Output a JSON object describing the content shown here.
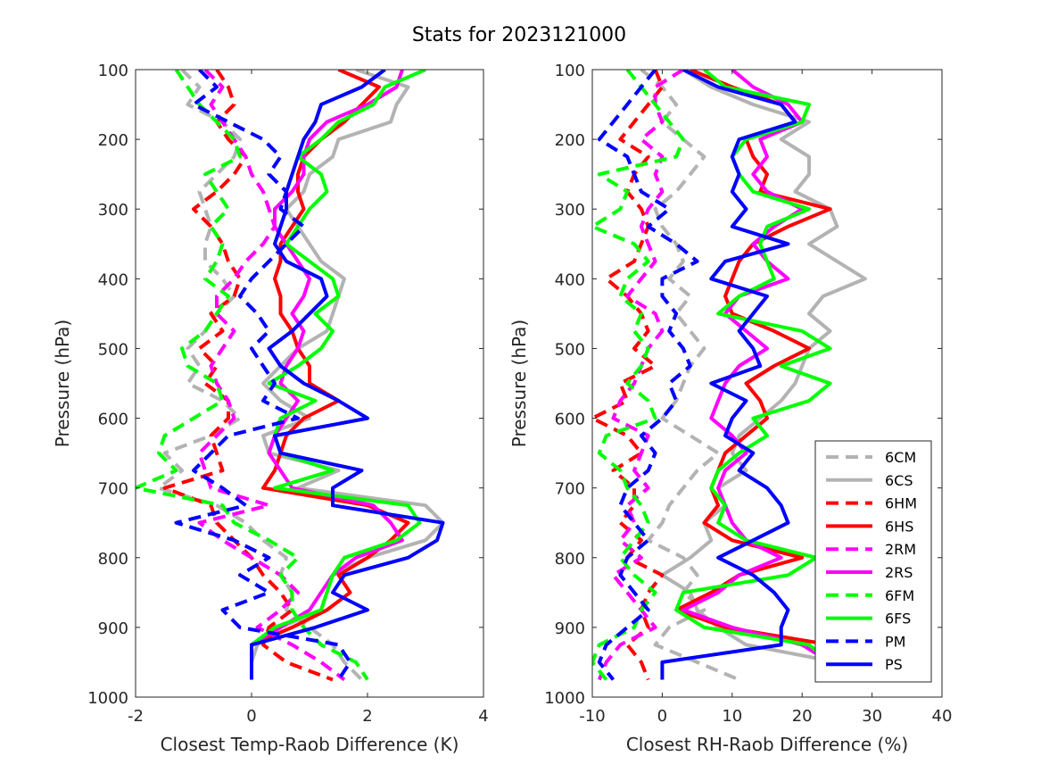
{
  "figure_title": "Stats for 2023121000",
  "colors": {
    "6C": "#b3b3b3",
    "6H": "#ff0000",
    "2R": "#ff00ff",
    "6F": "#00ff00",
    "P": "#0000ff"
  },
  "legend": {
    "placement": "inside-lower-right of right panel",
    "entries": [
      {
        "label": "6CM",
        "color": "#b3b3b3",
        "dash": true
      },
      {
        "label": "6CS",
        "color": "#b3b3b3",
        "dash": false
      },
      {
        "label": "6HM",
        "color": "#ff0000",
        "dash": true
      },
      {
        "label": "6HS",
        "color": "#ff0000",
        "dash": false
      },
      {
        "label": "2RM",
        "color": "#ff00ff",
        "dash": true
      },
      {
        "label": "2RS",
        "color": "#ff00ff",
        "dash": false
      },
      {
        "label": "6FM",
        "color": "#00ff00",
        "dash": true
      },
      {
        "label": "6FS",
        "color": "#00ff00",
        "dash": false
      },
      {
        "label": "PM",
        "color": "#0000ff",
        "dash": true
      },
      {
        "label": "PS",
        "color": "#0000ff",
        "dash": false
      }
    ]
  },
  "chart_data": [
    {
      "type": "line",
      "xlabel": "Closest Temp-Raob Difference (K)",
      "ylabel": "Pressure (hPa)",
      "xlim": [
        -2,
        4
      ],
      "ylim": [
        100,
        1000
      ],
      "y_reversed": true,
      "xticks": [
        "-2",
        "0",
        "2",
        "4"
      ],
      "yticks": [
        "100",
        "200",
        "300",
        "400",
        "500",
        "600",
        "700",
        "800",
        "900",
        "1000"
      ],
      "grid": false,
      "y": [
        100,
        125,
        150,
        175,
        200,
        225,
        250,
        275,
        300,
        325,
        350,
        375,
        400,
        425,
        450,
        475,
        500,
        525,
        550,
        575,
        600,
        625,
        650,
        675,
        700,
        725,
        750,
        775,
        800,
        825,
        850,
        875,
        900,
        925,
        950,
        975
      ],
      "series": [
        {
          "name": "6CM",
          "color": "#b3b3b3",
          "dash": true,
          "x": [
            -1.2,
            -0.9,
            -1.1,
            -0.5,
            -0.2,
            -0.3,
            -0.6,
            -0.9,
            -0.8,
            -0.7,
            -0.8,
            -0.8,
            -0.5,
            -0.3,
            -0.6,
            -0.8,
            -1.1,
            -0.9,
            -1.1,
            -0.5,
            -0.2,
            -0.7,
            -1.5,
            -1.2,
            -1.6,
            -0.6,
            -0.1,
            0.2,
            0.6,
            0.5,
            0.7,
            0.6,
            1.0,
            1.4,
            1.6,
            1.9
          ]
        },
        {
          "name": "6CS",
          "color": "#b3b3b3",
          "dash": false,
          "x": [
            1.8,
            2.7,
            2.5,
            2.4,
            1.5,
            1.4,
            1.0,
            0.9,
            0.6,
            0.8,
            1.0,
            1.2,
            1.6,
            1.5,
            1.4,
            1.3,
            0.8,
            0.5,
            0.2,
            0.5,
            1.0,
            0.2,
            0.3,
            1.5,
            0.8,
            3.0,
            3.3,
            3.0,
            2.0,
            1.4,
            1.3,
            1.2,
            0.5,
            0.1,
            0.0,
            0.0
          ]
        },
        {
          "name": "6HM",
          "color": "#ff0000",
          "dash": true,
          "x": [
            -0.6,
            -0.4,
            -0.3,
            -0.6,
            -0.4,
            -0.1,
            -0.3,
            -0.6,
            -1.0,
            -0.7,
            -0.5,
            -0.4,
            -0.2,
            -0.3,
            -0.7,
            -0.5,
            -0.9,
            -0.6,
            -0.8,
            -0.4,
            -0.4,
            -0.7,
            -0.6,
            -0.5,
            -1.5,
            -0.7,
            -0.6,
            -0.3,
            0.0,
            0.2,
            0.5,
            0.7,
            0.3,
            0.2,
            0.6,
            1.4
          ]
        },
        {
          "name": "6HS",
          "color": "#ff0000",
          "dash": false,
          "x": [
            1.5,
            2.2,
            1.9,
            1.6,
            1.2,
            0.9,
            0.8,
            0.8,
            0.9,
            0.7,
            0.5,
            0.5,
            0.4,
            0.5,
            0.5,
            0.7,
            0.8,
            1.0,
            1.0,
            1.5,
            0.9,
            0.6,
            0.5,
            0.4,
            0.2,
            2.0,
            2.7,
            2.4,
            2.0,
            1.5,
            1.7,
            1.3,
            0.7,
            0.0,
            0.0,
            0.0
          ]
        },
        {
          "name": "2RM",
          "color": "#ff00ff",
          "dash": true,
          "x": [
            -0.8,
            -0.5,
            -0.7,
            -0.5,
            -0.3,
            -0.1,
            0.0,
            0.2,
            0.3,
            0.4,
            0.2,
            -0.1,
            -0.3,
            -0.6,
            -0.6,
            -0.3,
            -0.5,
            -0.7,
            -0.6,
            -0.4,
            -0.3,
            -0.6,
            -0.9,
            -0.8,
            -0.7,
            0.3,
            -0.9,
            -0.5,
            0.0,
            0.5,
            0.8,
            0.5,
            0.1,
            0.7,
            1.2,
            1.6
          ]
        },
        {
          "name": "2RS",
          "color": "#ff00ff",
          "dash": false,
          "x": [
            2.6,
            2.5,
            2.0,
            1.3,
            1.0,
            0.9,
            0.9,
            0.7,
            0.4,
            0.4,
            0.6,
            0.8,
            1.0,
            0.9,
            0.7,
            0.9,
            0.8,
            0.6,
            0.5,
            0.8,
            0.6,
            0.4,
            0.3,
            0.5,
            0.7,
            2.1,
            2.4,
            2.6,
            1.8,
            1.4,
            1.2,
            1.0,
            0.5,
            0.0,
            0.0,
            0.0
          ]
        },
        {
          "name": "6FM",
          "color": "#00ff00",
          "dash": true,
          "x": [
            -1.3,
            -1.1,
            -0.9,
            -0.6,
            -0.3,
            -0.2,
            -0.8,
            -0.6,
            -0.4,
            -0.7,
            -0.5,
            -0.6,
            -0.8,
            -0.4,
            -0.6,
            -0.8,
            -1.2,
            -1.1,
            -0.6,
            -0.5,
            -1.0,
            -1.5,
            -1.6,
            -1.3,
            -2.0,
            -0.5,
            -0.3,
            0.3,
            0.8,
            0.5,
            0.7,
            0.7,
            0.9,
            1.2,
            1.8,
            2.0
          ]
        },
        {
          "name": "6FS",
          "color": "#00ff00",
          "dash": false,
          "x": [
            3.0,
            2.3,
            2.1,
            1.5,
            1.2,
            0.8,
            1.2,
            1.3,
            1.0,
            0.8,
            0.6,
            1.0,
            1.4,
            1.5,
            1.1,
            1.4,
            1.2,
            0.8,
            0.3,
            1.1,
            0.5,
            0.4,
            0.5,
            1.4,
            0.4,
            2.7,
            2.9,
            2.5,
            1.6,
            1.4,
            1.3,
            1.2,
            0.4,
            0.0,
            0.0,
            0.0
          ]
        },
        {
          "name": "PM",
          "color": "#0000ff",
          "dash": true,
          "x": [
            -0.9,
            -0.6,
            -1.0,
            -0.4,
            0.2,
            0.5,
            0.3,
            0.6,
            0.5,
            0.9,
            0.6,
            0.3,
            0.0,
            -0.2,
            0.1,
            0.3,
            0.0,
            0.2,
            0.4,
            0.2,
            0.8,
            -0.4,
            -0.7,
            -1.0,
            -0.5,
            -0.1,
            -1.3,
            -0.3,
            0.3,
            -0.2,
            0.3,
            -0.5,
            -0.2,
            1.5,
            1.7,
            1.5
          ]
        },
        {
          "name": "PS",
          "color": "#0000ff",
          "dash": false,
          "x": [
            2.3,
            1.9,
            1.2,
            1.1,
            0.9,
            0.8,
            0.7,
            0.6,
            0.6,
            0.5,
            0.4,
            0.6,
            1.2,
            1.3,
            1.0,
            0.7,
            0.3,
            0.5,
            0.9,
            1.5,
            2.0,
            0.4,
            0.5,
            1.9,
            1.4,
            1.4,
            3.3,
            3.2,
            2.7,
            1.6,
            1.4,
            2.0,
            1.1,
            0.0,
            0.0,
            0.0
          ]
        }
      ]
    },
    {
      "type": "line",
      "xlabel": "Closest RH-Raob Difference (%)",
      "ylabel": "Pressure (hPa)",
      "xlim": [
        -10,
        40
      ],
      "ylim": [
        100,
        1000
      ],
      "y_reversed": true,
      "xticks": [
        "-10",
        "0",
        "10",
        "20",
        "30",
        "40"
      ],
      "yticks": [
        "100",
        "200",
        "300",
        "400",
        "500",
        "600",
        "700",
        "800",
        "900",
        "1000"
      ],
      "grid": false,
      "y": [
        100,
        125,
        150,
        175,
        200,
        225,
        250,
        275,
        300,
        325,
        350,
        375,
        400,
        425,
        450,
        475,
        500,
        525,
        550,
        575,
        600,
        625,
        650,
        675,
        700,
        725,
        750,
        775,
        800,
        825,
        850,
        875,
        900,
        925,
        950,
        975
      ],
      "series": [
        {
          "name": "6CM",
          "color": "#b3b3b3",
          "dash": true,
          "x": [
            -3,
            0,
            2,
            0,
            3,
            6,
            4,
            2,
            -1,
            0,
            2,
            3,
            1,
            4,
            2,
            4,
            6,
            4,
            3,
            2,
            0,
            4,
            8,
            5,
            3,
            1,
            0,
            -2,
            3,
            5,
            3,
            6,
            1,
            -1,
            5,
            11
          ]
        },
        {
          "name": "6CS",
          "color": "#b3b3b3",
          "dash": false,
          "x": [
            3,
            7,
            13,
            21,
            17,
            21,
            21,
            19,
            24,
            25,
            21,
            25,
            29,
            23,
            21,
            24,
            21,
            20,
            19,
            17,
            14,
            11,
            10,
            12,
            8,
            9,
            6,
            7,
            4,
            0,
            4,
            5,
            8,
            12,
            25,
            30
          ]
        },
        {
          "name": "6HM",
          "color": "#ff0000",
          "dash": true,
          "x": [
            -1,
            0,
            -2,
            -4,
            -6,
            -2,
            -4,
            -5,
            -3,
            -2,
            -3,
            -4,
            -8,
            -5,
            -3,
            -2,
            -4,
            -1,
            -6,
            -5,
            -10,
            -5,
            -3,
            -7,
            -4,
            -4,
            -6,
            -3,
            -5,
            0,
            -2,
            -3,
            -2,
            -5,
            -3,
            -2
          ]
        },
        {
          "name": "6HS",
          "color": "#ff0000",
          "dash": false,
          "x": [
            4,
            10,
            17,
            19,
            12,
            13,
            15,
            14,
            24,
            18,
            13,
            11,
            10,
            9,
            10,
            16,
            21,
            16,
            12,
            14,
            15,
            12,
            9,
            8,
            7,
            8,
            6,
            10,
            20,
            11,
            7,
            2,
            9,
            24,
            26,
            23
          ]
        },
        {
          "name": "2RM",
          "color": "#ff00ff",
          "dash": true,
          "x": [
            3,
            -1,
            -1,
            0,
            -3,
            0,
            -1,
            0,
            -2,
            -3,
            -2,
            -1,
            -3,
            -5,
            -1,
            0,
            -2,
            -3,
            -4,
            -6,
            -7,
            -2,
            -3,
            -4,
            -2,
            -5,
            -4,
            -6,
            -3,
            -7,
            -5,
            -3,
            -1,
            -6,
            -8,
            -9
          ]
        },
        {
          "name": "2RS",
          "color": "#ff00ff",
          "dash": false,
          "x": [
            10,
            13,
            18,
            20,
            14,
            15,
            13,
            15,
            20,
            16,
            13,
            15,
            18,
            11,
            9,
            12,
            15,
            11,
            9,
            8,
            7,
            10,
            12,
            9,
            8,
            9,
            10,
            12,
            17,
            11,
            8,
            3,
            10,
            20,
            24,
            25
          ]
        },
        {
          "name": "6FM",
          "color": "#00ff00",
          "dash": true,
          "x": [
            -5,
            -3,
            -1,
            1,
            3,
            2,
            -9,
            -5,
            -6,
            -10,
            -4,
            -2,
            -5,
            -6,
            -3,
            -4,
            -2,
            -3,
            -5,
            -2,
            -1,
            -8,
            -9,
            -6,
            -5,
            -3,
            -2,
            -4,
            -6,
            -4,
            -1,
            -3,
            -4,
            -9,
            -10,
            -8
          ]
        },
        {
          "name": "6FS",
          "color": "#00ff00",
          "dash": false,
          "x": [
            6,
            9,
            21,
            20,
            12,
            10,
            11,
            13,
            21,
            15,
            14,
            15,
            16,
            11,
            8,
            20,
            24,
            17,
            24,
            21,
            13,
            15,
            11,
            8,
            7,
            9,
            8,
            12,
            22,
            18,
            3,
            2,
            6,
            21,
            24,
            25
          ]
        },
        {
          "name": "PM",
          "color": "#0000ff",
          "dash": true,
          "x": [
            -1,
            -3,
            -5,
            -7,
            -9,
            -5,
            -4,
            -3,
            1,
            -2,
            2,
            5,
            0,
            0,
            2,
            1,
            3,
            4,
            1,
            2,
            0,
            -3,
            -1,
            -2,
            -5,
            -6,
            -4,
            -2,
            -5,
            -6,
            -4,
            -2,
            -5,
            -8,
            -9,
            -7
          ]
        },
        {
          "name": "PS",
          "color": "#0000ff",
          "dash": false,
          "x": [
            3,
            8,
            17,
            19,
            11,
            10,
            11,
            10,
            12,
            10,
            18,
            9,
            7,
            15,
            13,
            11,
            13,
            14,
            7,
            12,
            10,
            9,
            13,
            11,
            15,
            17,
            18,
            13,
            8,
            13,
            16,
            18,
            17,
            17,
            0,
            0
          ]
        }
      ]
    }
  ]
}
